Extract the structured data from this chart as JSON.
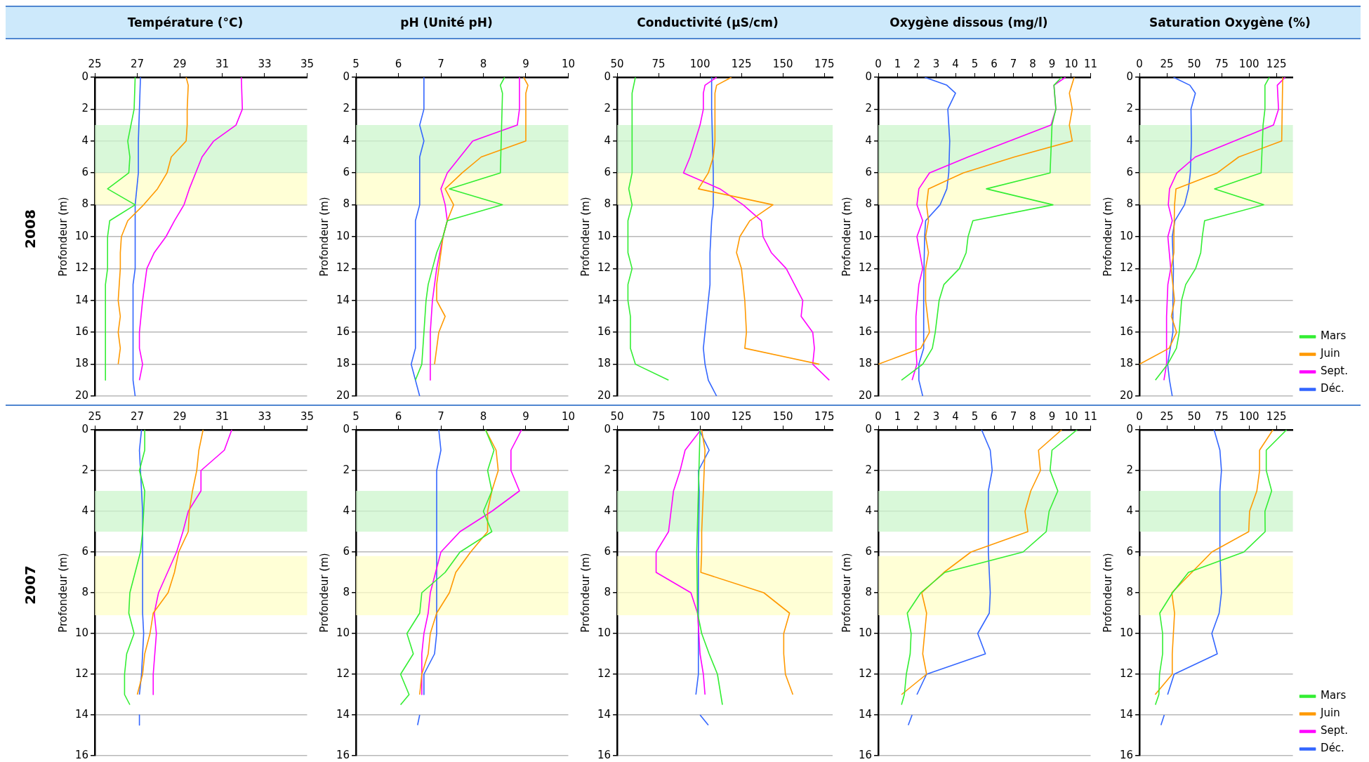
{
  "chart_data": [
    {
      "type": "line",
      "title": "Température (°C)",
      "annotations": [
        "2008"
      ],
      "ylabel": "Profondeur (m)",
      "xlim": [
        25,
        35
      ],
      "xticks": [
        25,
        27,
        29,
        31,
        33,
        35
      ],
      "ylim": [
        20,
        0
      ],
      "yticks": [
        0,
        2,
        4,
        6,
        8,
        10,
        12,
        14,
        16,
        18,
        20
      ],
      "grid": "y",
      "marker": "none",
      "bands": [
        {
          "axis": "y",
          "from": 3,
          "to": 6,
          "color": "#ccf5cc"
        },
        {
          "axis": "y",
          "from": 6,
          "to": 8,
          "color": "#ffffc8"
        }
      ],
      "series": [
        {
          "color": "#33ee33",
          "x": [
            26.9,
            26.85,
            26.7,
            26.55,
            26.65,
            26.6,
            25.6,
            26.9,
            25.7,
            25.6,
            25.6,
            25.5,
            25.5
          ],
          "values": [
            0,
            2,
            3,
            4,
            5,
            6,
            7,
            8,
            9,
            10,
            12,
            13,
            19
          ]
        },
        {
          "color": "#ff9900",
          "x": [
            29.3,
            29.4,
            29.35,
            29.35,
            29.3,
            28.6,
            28.4,
            27.95,
            27.3,
            26.55,
            26.25,
            26.2,
            26.2,
            26.1,
            26.2,
            26.1,
            26.2,
            26.1
          ],
          "values": [
            0,
            0.5,
            2,
            3,
            4,
            5,
            6,
            7,
            8,
            9,
            10,
            11,
            12,
            14,
            15,
            16,
            17,
            18
          ]
        },
        {
          "color": "#ff00ff",
          "x": [
            31.9,
            31.95,
            31.65,
            30.6,
            30.05,
            29.75,
            29.45,
            29.2,
            28.75,
            28.35,
            27.8,
            27.45,
            27.25,
            27.1,
            27.1,
            27.25,
            27.1
          ],
          "values": [
            0,
            2,
            3,
            4,
            5,
            6,
            7,
            8,
            9,
            10,
            11,
            12,
            14,
            16,
            17,
            18,
            19
          ]
        },
        {
          "color": "#3366ff",
          "x": [
            27.15,
            27.1,
            27.05,
            27.05,
            26.9,
            26.9,
            26.8,
            26.8,
            26.9
          ],
          "values": [
            0,
            2,
            4,
            6,
            8,
            12,
            13,
            19,
            20
          ]
        }
      ]
    },
    {
      "type": "line",
      "title": "pH (Unité pH)",
      "ylabel": "Profondeur (m)",
      "xlim": [
        5,
        10
      ],
      "xticks": [
        5,
        6,
        7,
        8,
        9,
        10
      ],
      "ylim": [
        20,
        0
      ],
      "yticks": [
        0,
        2,
        4,
        6,
        8,
        10,
        12,
        14,
        16,
        18,
        20
      ],
      "grid": "y",
      "marker": "none",
      "bands": [
        {
          "axis": "y",
          "from": 3,
          "to": 6,
          "color": "#ccf5cc"
        },
        {
          "axis": "y",
          "from": 6,
          "to": 8,
          "color": "#ffffc8"
        }
      ],
      "series": [
        {
          "color": "#33ee33",
          "x": [
            8.5,
            8.4,
            8.45,
            8.4,
            7.2,
            8.45,
            7.15,
            7.05,
            6.9,
            6.8,
            6.7,
            6.65,
            6.6,
            6.55,
            6.4
          ],
          "values": [
            0,
            0.5,
            1,
            6,
            7,
            8,
            9,
            10,
            11,
            12,
            13,
            14,
            16,
            18,
            19
          ]
        },
        {
          "color": "#ff9900",
          "x": [
            8.95,
            9.05,
            9.0,
            9.0,
            7.95,
            7.5,
            7.1,
            7.3,
            7.15,
            7.05,
            6.95,
            6.9,
            6.9,
            7.1,
            6.95,
            6.85
          ],
          "values": [
            0,
            0.5,
            1,
            4,
            5,
            6,
            7,
            8,
            9,
            10,
            12,
            13,
            14,
            15,
            16,
            18
          ]
        },
        {
          "color": "#ff00ff",
          "x": [
            8.85,
            8.85,
            8.8,
            7.75,
            7.45,
            7.15,
            7.0,
            7.1,
            7.15,
            7.05,
            6.9,
            6.8,
            6.75,
            6.75
          ],
          "values": [
            0,
            2,
            3,
            4,
            5,
            6,
            7,
            8,
            9,
            10,
            12,
            14,
            16,
            19
          ]
        },
        {
          "color": "#3366ff",
          "x": [
            6.6,
            6.6,
            6.5,
            6.6,
            6.5,
            6.5,
            6.4,
            6.4,
            6.3,
            6.5
          ],
          "values": [
            0,
            2,
            3,
            4,
            5,
            8,
            9,
            17,
            18,
            20
          ]
        }
      ]
    },
    {
      "type": "line",
      "title": "Conductivité (µS/cm)",
      "ylabel": "Profondeur (m)",
      "xlim": [
        50,
        180
      ],
      "xticks": [
        50,
        75,
        100,
        125,
        150,
        175
      ],
      "ylim": [
        20,
        0
      ],
      "yticks": [
        0,
        2,
        4,
        6,
        8,
        10,
        12,
        14,
        16,
        18,
        20
      ],
      "grid": "y",
      "marker": "none",
      "bands": [
        {
          "axis": "y",
          "from": 3,
          "to": 6,
          "color": "#ccf5cc"
        },
        {
          "axis": "y",
          "from": 6,
          "to": 8,
          "color": "#ffffc8"
        }
      ],
      "series": [
        {
          "color": "#33ee33",
          "x": [
            61,
            59,
            59,
            57,
            59,
            56.5,
            56.5,
            59,
            56.5,
            56.5,
            58,
            58,
            61,
            81
          ],
          "values": [
            0,
            1,
            6,
            7,
            8,
            9,
            11,
            12,
            13,
            14,
            15,
            17,
            18,
            19
          ]
        },
        {
          "color": "#ff9900",
          "x": [
            119,
            110,
            109,
            109,
            108,
            105,
            99,
            144,
            130,
            124,
            122,
            125,
            127,
            128,
            127,
            172
          ],
          "values": [
            0,
            0.5,
            1,
            4,
            5,
            6,
            7,
            8,
            9,
            10,
            11,
            12,
            14,
            16,
            17,
            18
          ]
        },
        {
          "color": "#ff00ff",
          "x": [
            110,
            103,
            102,
            102,
            100,
            94,
            90,
            112,
            126,
            137,
            138,
            143,
            152,
            162,
            161,
            168,
            169,
            168,
            178
          ],
          "values": [
            0,
            0.5,
            1,
            2,
            3,
            5,
            6,
            7,
            8,
            9,
            10,
            11,
            12,
            14,
            15,
            16,
            17,
            18,
            19
          ]
        },
        {
          "color": "#3366ff",
          "x": [
            107,
            107,
            108,
            108,
            107,
            106,
            106,
            104,
            102,
            103,
            105,
            110
          ],
          "values": [
            0,
            2,
            6,
            8,
            9,
            11,
            13,
            15,
            17,
            18,
            19,
            20
          ]
        }
      ]
    },
    {
      "type": "line",
      "title": "Oxygène dissous (mg/l)",
      "ylabel": "Profondeur (m)",
      "xlim": [
        0,
        11
      ],
      "xticks": [
        0,
        1,
        2,
        3,
        4,
        5,
        6,
        7,
        8,
        9,
        10,
        11
      ],
      "ylim": [
        20,
        0
      ],
      "yticks": [
        0,
        2,
        4,
        6,
        8,
        10,
        12,
        14,
        16,
        18,
        20
      ],
      "grid": "y",
      "marker": "none",
      "bands": [
        {
          "axis": "y",
          "from": 3,
          "to": 6,
          "color": "#ccf5cc"
        },
        {
          "axis": "y",
          "from": 6,
          "to": 8,
          "color": "#ffffc8"
        }
      ],
      "series": [
        {
          "color": "#33ee33",
          "x": [
            9.5,
            9.1,
            9.2,
            9.0,
            8.9,
            5.6,
            9.05,
            4.9,
            4.65,
            4.55,
            4.2,
            3.4,
            3.15,
            2.95,
            2.8,
            2.3,
            1.2
          ],
          "values": [
            0,
            0.5,
            2,
            3,
            6,
            7,
            8,
            9,
            10,
            11,
            12,
            13,
            14,
            16,
            17,
            18,
            19
          ]
        },
        {
          "color": "#ff9900",
          "x": [
            10.15,
            9.9,
            10.05,
            9.9,
            10.05,
            7.05,
            4.4,
            2.6,
            2.5,
            2.6,
            2.45,
            2.6,
            2.45,
            2.45,
            2.65,
            2.2,
            0
          ],
          "values": [
            0,
            1,
            2,
            3,
            4,
            5,
            6,
            7,
            8,
            9,
            10,
            11,
            12,
            14,
            16,
            17,
            18
          ]
        },
        {
          "color": "#ff00ff",
          "x": [
            9.7,
            9.1,
            9.2,
            8.95,
            4.65,
            2.65,
            2.1,
            2.0,
            2.3,
            2.0,
            2.3,
            2.1,
            1.95,
            1.95,
            2.0,
            1.75
          ],
          "values": [
            0,
            0.5,
            2,
            3,
            5,
            6,
            7,
            8,
            9,
            10,
            12,
            13,
            15,
            17,
            18,
            19
          ]
        },
        {
          "color": "#3366ff",
          "x": [
            2.4,
            3.55,
            4.0,
            3.6,
            3.7,
            3.65,
            3.55,
            3.2,
            2.45,
            2.4,
            2.35,
            2.35,
            2.1,
            2.1,
            2.3
          ],
          "values": [
            0,
            0.5,
            1,
            2,
            4,
            6,
            7,
            8,
            9,
            10,
            13,
            17,
            18,
            19,
            20
          ]
        }
      ]
    },
    {
      "type": "line",
      "title": "Saturation Oxygène (%)",
      "ylabel": "Profondeur (m)",
      "xlim": [
        0,
        140
      ],
      "xticks": [
        0,
        25,
        50,
        75,
        100,
        125
      ],
      "ylim": [
        20,
        0
      ],
      "yticks": [
        0,
        2,
        4,
        6,
        8,
        10,
        12,
        14,
        16,
        18,
        20
      ],
      "grid": "y",
      "marker": "none",
      "legend": "bottom right",
      "bands": [
        {
          "axis": "y",
          "from": 3,
          "to": 6,
          "color": "#ccf5cc"
        },
        {
          "axis": "y",
          "from": 6,
          "to": 8,
          "color": "#ffffc8"
        }
      ],
      "series": [
        {
          "name": "Mars",
          "color": "#33ee33",
          "x": [
            118.5,
            114.5,
            114.5,
            112.8,
            111,
            68.5,
            113.4,
            59.4,
            57.3,
            55.9,
            51.2,
            42.2,
            38.4,
            36.3,
            33.7,
            25.7,
            14.5
          ],
          "values": [
            0,
            0.5,
            2,
            3,
            6,
            7,
            8,
            9,
            10,
            11,
            12,
            13,
            14,
            16,
            17,
            18,
            19
          ]
        },
        {
          "name": "Juin",
          "color": "#ff9900",
          "x": [
            130.7,
            129.8,
            90.6,
            71,
            33.3,
            32,
            31.4,
            31.4,
            28.9,
            32,
            29.1,
            33.9,
            27,
            0
          ],
          "values": [
            0,
            4,
            5,
            6,
            7,
            8,
            10,
            11,
            12,
            14,
            15,
            16,
            17,
            18
          ]
        },
        {
          "name": "Sept.",
          "color": "#ff00ff",
          "x": [
            133,
            125.8,
            126.9,
            122.3,
            51,
            34.1,
            27.4,
            26.3,
            29.9,
            25.9,
            28.5,
            25.9,
            24.7,
            24.7,
            22.3
          ],
          "values": [
            0,
            0.5,
            2,
            3,
            5,
            6,
            7,
            8,
            9,
            10,
            12,
            13,
            15,
            18,
            19
          ]
        },
        {
          "name": "Déc.",
          "color": "#3366ff",
          "x": [
            31,
            46,
            51,
            47,
            47.4,
            46.4,
            44.7,
            41.1,
            32.3,
            29.9,
            31,
            30.5,
            30.5,
            25.7,
            27.4,
            29.9
          ],
          "values": [
            0,
            0.5,
            1,
            2,
            4,
            6,
            7,
            8,
            9,
            10,
            12,
            14,
            16,
            18,
            19,
            20
          ]
        }
      ]
    },
    {
      "type": "line",
      "annotations": [
        "2007"
      ],
      "ylabel": "Profondeur (m)",
      "xlim": [
        25,
        35
      ],
      "xticks": [
        25,
        27,
        29,
        31,
        33,
        35
      ],
      "ylim": [
        16,
        0
      ],
      "yticks": [
        0,
        2,
        4,
        6,
        8,
        10,
        12,
        14,
        16
      ],
      "grid": "y",
      "marker": "none",
      "bands": [
        {
          "axis": "y",
          "from": 3,
          "to": 5,
          "color": "#ccf5cc"
        },
        {
          "axis": "y",
          "from": 6.2,
          "to": 9.1,
          "color": "#ffffc8"
        }
      ],
      "series": [
        {
          "color": "#33ee33",
          "x": [
            27.35,
            27.35,
            27.1,
            27.35,
            27.25,
            27.15,
            26.65,
            26.6,
            26.85,
            26.5,
            26.4,
            26.4,
            26.65
          ],
          "values": [
            0,
            1,
            2,
            3,
            5,
            6,
            8,
            9,
            10,
            11,
            12,
            13,
            13.5
          ]
        },
        {
          "color": "#ff9900",
          "x": [
            30.1,
            29.9,
            29.8,
            29.6,
            29.45,
            29.4,
            28.95,
            28.75,
            28.45,
            27.75,
            27.6,
            27.35,
            27.25,
            27.0
          ],
          "values": [
            0,
            1,
            2,
            3,
            4,
            5,
            6,
            7,
            8,
            9,
            10,
            11,
            12,
            13
          ]
        },
        {
          "color": "#ff00ff",
          "x": [
            31.45,
            31.1,
            30.0,
            30.0,
            29.4,
            29.15,
            28.85,
            28.0,
            27.8,
            27.9,
            27.75,
            27.75
          ],
          "values": [
            0,
            1,
            2,
            3,
            4,
            5,
            6,
            8,
            9,
            10,
            12,
            13
          ]
        },
        {
          "color": "#3366ff",
          "x": [
            27.2,
            27.1,
            27.15,
            27.25,
            27.25,
            27.3,
            27.2,
            27.1
          ],
          "values": [
            0,
            1,
            2,
            4,
            9,
            10,
            12,
            13
          ]
        },
        {
          "color": "#3366ff",
          "x": [
            27.1,
            27.1
          ],
          "values": [
            14,
            14.5
          ]
        }
      ]
    },
    {
      "type": "line",
      "ylabel": "Profondeur (m)",
      "xlim": [
        5,
        10
      ],
      "xticks": [
        5,
        6,
        7,
        8,
        9,
        10
      ],
      "ylim": [
        16,
        0
      ],
      "yticks": [
        0,
        2,
        4,
        6,
        8,
        10,
        12,
        14,
        16
      ],
      "grid": "y",
      "marker": "none",
      "bands": [
        {
          "axis": "y",
          "from": 3,
          "to": 5,
          "color": "#ccf5cc"
        },
        {
          "axis": "y",
          "from": 6.2,
          "to": 9.1,
          "color": "#ffffc8"
        }
      ],
      "series": [
        {
          "color": "#33ee33",
          "x": [
            8.05,
            8.25,
            8.1,
            8.2,
            8.0,
            8.2,
            7.45,
            7.1,
            6.55,
            6.5,
            6.2,
            6.35,
            6.05,
            6.25,
            6.05
          ],
          "values": [
            0,
            1,
            2,
            3,
            4,
            5,
            6,
            7,
            8,
            9,
            10,
            11,
            12,
            13,
            13.5
          ]
        },
        {
          "color": "#ff9900",
          "x": [
            8.05,
            8.3,
            8.35,
            8.2,
            8.1,
            8.1,
            7.7,
            7.35,
            7.2,
            6.9,
            6.75,
            6.7,
            6.55,
            6.5
          ],
          "values": [
            0,
            1,
            2,
            3,
            4,
            5,
            6,
            7,
            8,
            9,
            10,
            11,
            12,
            13
          ]
        },
        {
          "color": "#ff00ff",
          "x": [
            8.9,
            8.65,
            8.65,
            8.85,
            8.2,
            7.45,
            7.0,
            6.75,
            6.7,
            6.6,
            6.55,
            6.55
          ],
          "values": [
            0,
            1,
            2,
            3,
            4,
            5,
            6,
            8,
            9,
            10,
            11,
            13
          ]
        },
        {
          "color": "#3366ff",
          "x": [
            6.95,
            7.0,
            6.9,
            6.9,
            6.85,
            6.6,
            6.6
          ],
          "values": [
            0,
            1,
            2,
            10,
            11,
            12,
            13
          ]
        },
        {
          "color": "#3366ff",
          "x": [
            6.5,
            6.45
          ],
          "values": [
            14,
            14.5
          ]
        }
      ]
    },
    {
      "type": "line",
      "ylabel": "Profondeur (m)",
      "xlim": [
        50,
        180
      ],
      "xticks": [
        50,
        75,
        100,
        125,
        150,
        175
      ],
      "ylim": [
        16,
        0
      ],
      "yticks": [
        0,
        2,
        4,
        6,
        8,
        10,
        12,
        14,
        16
      ],
      "grid": "y",
      "marker": "none",
      "bands": [
        {
          "axis": "y",
          "from": 3,
          "to": 5,
          "color": "#ccf5cc"
        },
        {
          "axis": "y",
          "from": 6.2,
          "to": 9.1,
          "color": "#ffffc8"
        }
      ],
      "series": [
        {
          "color": "#33ee33",
          "x": [
            100,
            98,
            98.5,
            101,
            105.5,
            110.5,
            113.5
          ],
          "values": [
            0,
            6,
            9,
            10,
            11,
            12,
            13.5
          ]
        },
        {
          "color": "#ff9900",
          "x": [
            101,
            103,
            102.5,
            101,
            101,
            100.5,
            138.5,
            154,
            150.5,
            150.5,
            151.5,
            156
          ],
          "values": [
            0,
            1,
            2,
            5,
            6,
            7,
            8,
            9,
            10,
            11,
            12,
            13
          ]
        },
        {
          "color": "#ff00ff",
          "x": [
            100.5,
            91,
            88,
            84,
            82.5,
            81,
            73.5,
            73.5,
            94.5,
            98.5,
            100,
            102,
            103
          ],
          "values": [
            0,
            1,
            2,
            3,
            4,
            5,
            6,
            7,
            8,
            9,
            11,
            12,
            13
          ]
        },
        {
          "color": "#3366ff",
          "x": [
            99.5,
            105.5,
            99,
            99.5,
            99,
            99,
            97.5
          ],
          "values": [
            0,
            1,
            2,
            3,
            6,
            12,
            13
          ]
        },
        {
          "color": "#3366ff",
          "x": [
            100,
            105
          ],
          "values": [
            14,
            14.5
          ]
        }
      ]
    },
    {
      "type": "line",
      "ylabel": "Profondeur (m)",
      "xlim": [
        0,
        11
      ],
      "xticks": [
        0,
        1,
        2,
        3,
        4,
        5,
        6,
        7,
        8,
        9,
        10,
        11
      ],
      "ylim": [
        16,
        0
      ],
      "yticks": [
        0,
        2,
        4,
        6,
        8,
        10,
        12,
        14,
        16
      ],
      "grid": "y",
      "marker": "none",
      "bands": [
        {
          "axis": "y",
          "from": 3,
          "to": 5,
          "color": "#ccf5cc"
        },
        {
          "axis": "y",
          "from": 6.2,
          "to": 9.1,
          "color": "#ffffc8"
        }
      ],
      "series": [
        {
          "color": "#33ee33",
          "x": [
            10.3,
            9.0,
            8.9,
            9.3,
            8.85,
            8.7,
            7.5,
            3.45,
            2.2,
            1.5,
            1.7,
            1.65,
            1.45,
            1.35,
            1.2
          ],
          "values": [
            0,
            1,
            2,
            3,
            4,
            5,
            6,
            7,
            8,
            9,
            10,
            11,
            12,
            13,
            13.5
          ]
        },
        {
          "color": "#ff9900",
          "x": [
            9.5,
            8.3,
            8.4,
            7.9,
            7.6,
            7.75,
            4.8,
            3.4,
            2.25,
            2.5,
            2.4,
            2.3,
            2.5,
            1.2
          ],
          "values": [
            0,
            1,
            2,
            3,
            4,
            5,
            6,
            7,
            8,
            9,
            10,
            11,
            12,
            13
          ]
        },
        {
          "color": "#3366ff",
          "x": [
            5.35,
            5.8,
            5.9,
            5.7,
            5.7,
            5.8,
            5.75,
            5.15,
            5.55,
            2.5,
            2.0
          ],
          "values": [
            0,
            1,
            2,
            3,
            6,
            8,
            9,
            10,
            11,
            12,
            13
          ]
        },
        {
          "color": "#3366ff",
          "x": [
            1.75,
            1.55
          ],
          "values": [
            14,
            14.5
          ]
        }
      ]
    },
    {
      "type": "line",
      "ylabel": "Profondeur (m)",
      "xlim": [
        0,
        140
      ],
      "xticks": [
        0,
        25,
        50,
        75,
        100,
        125
      ],
      "ylim": [
        16,
        0
      ],
      "yticks": [
        0,
        2,
        4,
        6,
        8,
        10,
        12,
        14,
        16
      ],
      "grid": "y",
      "marker": "none",
      "legend": "bottom right",
      "bands": [
        {
          "axis": "y",
          "from": 3,
          "to": 5,
          "color": "#ccf5cc"
        },
        {
          "axis": "y",
          "from": 6.2,
          "to": 9.1,
          "color": "#ffffc8"
        }
      ],
      "series": [
        {
          "name": "Mars",
          "color": "#33ee33",
          "x": [
            134.3,
            115.7,
            115.7,
            120.6,
            114.5,
            114.7,
            95.3,
            44.7,
            30.1,
            18.5,
            21.1,
            21.1,
            18.3,
            17.7,
            14.5
          ],
          "values": [
            0,
            1,
            2,
            3,
            4,
            5,
            6,
            7,
            8,
            9,
            10,
            11,
            12,
            13,
            13.5
          ]
        },
        {
          "name": "Juin",
          "color": "#ff9900",
          "x": [
            121.8,
            109.6,
            109.6,
            107.1,
            100.5,
            99.7,
            66,
            29.5,
            32,
            29.9,
            29.9,
            14.3
          ],
          "values": [
            0,
            1,
            2,
            3,
            4,
            5,
            6,
            8,
            9,
            11,
            12,
            13
          ]
        },
        {
          "name": "Sept.",
          "color": "#ff00ff"
        },
        {
          "name": "Déc.",
          "color": "#3366ff",
          "x": [
            68.1,
            73.4,
            74.8,
            73.4,
            73.4,
            74.8,
            72.7,
            66,
            71,
            31.6,
            25.7
          ],
          "values": [
            0,
            1,
            2,
            3,
            6,
            8,
            9,
            10,
            11,
            12,
            13
          ]
        },
        {
          "color": "#3366ff",
          "x": [
            22.6,
            19.6
          ],
          "values": [
            14,
            14.5
          ]
        }
      ]
    }
  ]
}
